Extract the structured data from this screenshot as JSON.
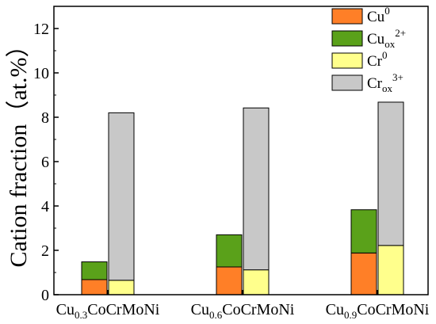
{
  "chart_data": {
    "type": "bar",
    "stacked": true,
    "ylabel": "Cation fraction（at.%）",
    "ylim": [
      0,
      13
    ],
    "yticks": [
      0,
      2,
      4,
      6,
      8,
      10,
      12
    ],
    "grid": false,
    "legend_position": "top-right",
    "groups": [
      {
        "label_parts": [
          "Cu",
          "0.3",
          "CoCrMoNi"
        ],
        "cu_stack": {
          "Cu0": 0.68,
          "Cu_ox2+": 0.8
        },
        "cr_stack": {
          "Cr0": 0.65,
          "Cr_ox3+": 7.55
        }
      },
      {
        "label_parts": [
          "Cu",
          "0.6",
          "CoCrMoNi"
        ],
        "cu_stack": {
          "Cu0": 1.25,
          "Cu_ox2+": 1.45
        },
        "cr_stack": {
          "Cr0": 1.12,
          "Cr_ox3+": 7.3
        }
      },
      {
        "label_parts": [
          "Cu",
          "0.9",
          "CoCrMoNi"
        ],
        "cu_stack": {
          "Cu0": 1.88,
          "Cu_ox2+": 1.95
        },
        "cr_stack": {
          "Cr0": 2.22,
          "Cr_ox3+": 6.46
        }
      }
    ],
    "series": [
      {
        "key": "Cu0",
        "base": "Cu",
        "sub": "",
        "sup": "0",
        "color": "#ff7f27"
      },
      {
        "key": "Cu_ox2+",
        "base": "Cu",
        "sub": "ox",
        "sup": "2+",
        "color": "#5aa11a"
      },
      {
        "key": "Cr0",
        "base": "Cr",
        "sub": "",
        "sup": "0",
        "color": "#ffff8c"
      },
      {
        "key": "Cr_ox3+",
        "base": "Cr",
        "sub": "ox",
        "sup": "3+",
        "color": "#c8c8c8"
      }
    ]
  }
}
